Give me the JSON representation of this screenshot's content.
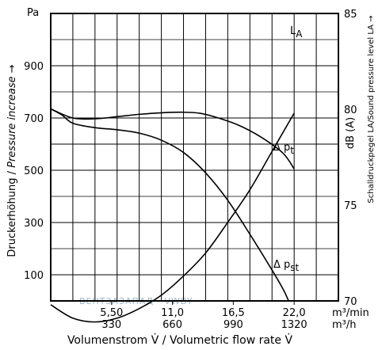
{
  "chart_data": {
    "type": "line",
    "left_axis": {
      "unit": "Pa",
      "ticks": [
        100,
        300,
        500,
        700,
        900
      ],
      "label_de": "Druckerhöhung",
      "label_sep": " / ",
      "label_en": "Pressure increase →",
      "range": [
        0,
        1100
      ]
    },
    "right_axis": {
      "ticks": [
        70,
        75,
        80,
        85
      ],
      "unit": "dB (A)",
      "label": "Schalldruckpegel LA/Sound pressure level LA →",
      "range": [
        70,
        85
      ]
    },
    "x_axis": {
      "range": [
        0,
        26
      ],
      "ticks_m3min": [
        "5,50",
        "11,0",
        "16,5",
        "22,0"
      ],
      "ticks_m3h": [
        "330",
        "660",
        "990",
        "1320"
      ],
      "tick_values_m3min": [
        5.5,
        11.0,
        16.5,
        22.0
      ],
      "unit_m3min": "m³/min",
      "unit_m3h": "m³/h",
      "label": "Volumenstrom V̇ / Volumetric flow rate V̇"
    },
    "series": [
      {
        "name": "LA",
        "label_main": "L",
        "label_sub": "A",
        "axis": "right",
        "points": [
          [
            0,
            69.8
          ],
          [
            2,
            69.1
          ],
          [
            4,
            68.9
          ],
          [
            6,
            69.1
          ],
          [
            8,
            69.6
          ],
          [
            10,
            70.3
          ],
          [
            12,
            71.3
          ],
          [
            14,
            72.5
          ],
          [
            16,
            74.1
          ],
          [
            18,
            75.8
          ],
          [
            20,
            77.8
          ],
          [
            22,
            79.8
          ]
        ]
      },
      {
        "name": "Δ pt",
        "label_main": "Δ p",
        "label_sub": "t",
        "axis": "left",
        "points": [
          [
            0,
            735
          ],
          [
            2,
            700
          ],
          [
            4,
            697
          ],
          [
            6,
            705
          ],
          [
            8,
            714
          ],
          [
            10,
            720
          ],
          [
            12,
            722
          ],
          [
            13.5,
            718
          ],
          [
            15,
            702
          ],
          [
            17,
            672
          ],
          [
            19,
            627
          ],
          [
            21,
            565
          ],
          [
            22,
            505
          ]
        ]
      },
      {
        "name": "Δ pst",
        "label_main": "Δ p",
        "label_sub": "st",
        "axis": "left",
        "points": [
          [
            0,
            735
          ],
          [
            1,
            712
          ],
          [
            2,
            680
          ],
          [
            4,
            663
          ],
          [
            6,
            655
          ],
          [
            8,
            642
          ],
          [
            10,
            615
          ],
          [
            12,
            568
          ],
          [
            14,
            490
          ],
          [
            16,
            385
          ],
          [
            18,
            255
          ],
          [
            20,
            118
          ],
          [
            21,
            45
          ],
          [
            21.5,
            0
          ]
        ]
      }
    ],
    "grid": true,
    "watermark": "ВЕНТЗАЗАПАД · VWBY"
  }
}
